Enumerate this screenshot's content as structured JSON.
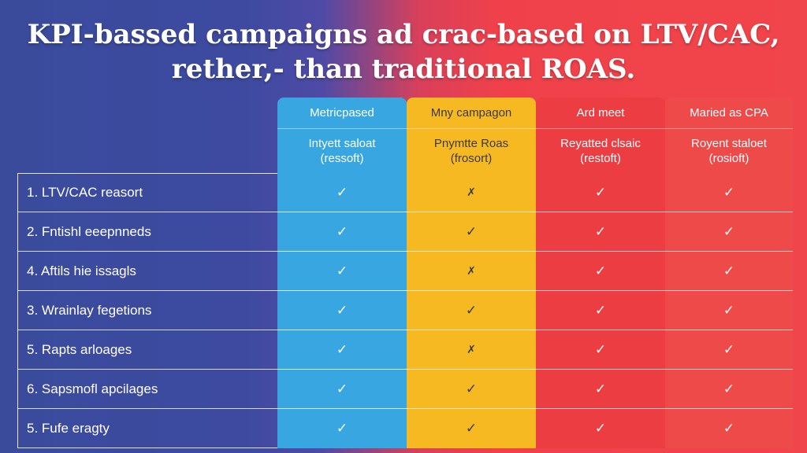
{
  "title": {
    "line1": "KPI-bassed campaigns ad crac-based on LTV/CAC,",
    "line2": "rether,- than traditional ROAS."
  },
  "columns": [
    {
      "header": "Metric​pased",
      "sub1": "Intyett saloat",
      "sub2": "(ressoft)"
    },
    {
      "header": "Mny campagon",
      "sub1": "Pnymtte Roas",
      "sub2": "(frosort)"
    },
    {
      "header": "Ard meet",
      "sub1": "Reyatted clsaic",
      "sub2": "(restoft)"
    },
    {
      "header": "Maried as CPA",
      "sub1": "Royent staloet",
      "sub2": "(rosioft)"
    }
  ],
  "rows": [
    {
      "label": "1. LTV/CAC reasort",
      "marks": [
        "✓",
        "✗",
        "✓",
        "✓"
      ]
    },
    {
      "label": "2. Fntishl eeepnneds",
      "marks": [
        "✓",
        "✓",
        "✓",
        "✓"
      ]
    },
    {
      "label": "4. Aftils hie issagls",
      "marks": [
        "✓",
        "✗",
        "✓",
        "✓"
      ]
    },
    {
      "label": "3. Wrainlay fegetions",
      "marks": [
        "✓",
        "✓",
        "✓",
        "✓"
      ]
    },
    {
      "label": "5. Rapts arloages",
      "marks": [
        "✓",
        "✗",
        "✓",
        "✓"
      ]
    },
    {
      "label": "6. Sapsmofl apcilages",
      "marks": [
        "✓",
        "✓",
        "✓",
        "✓"
      ]
    },
    {
      "label": "5. Fufe eragty",
      "marks": [
        "✓",
        "✓",
        "✓",
        "✓"
      ]
    }
  ],
  "colors": {
    "col1": "#38a6e0",
    "col2": "#f7b921",
    "col3": "#ec3d43",
    "col4": "#ef4a4a"
  }
}
